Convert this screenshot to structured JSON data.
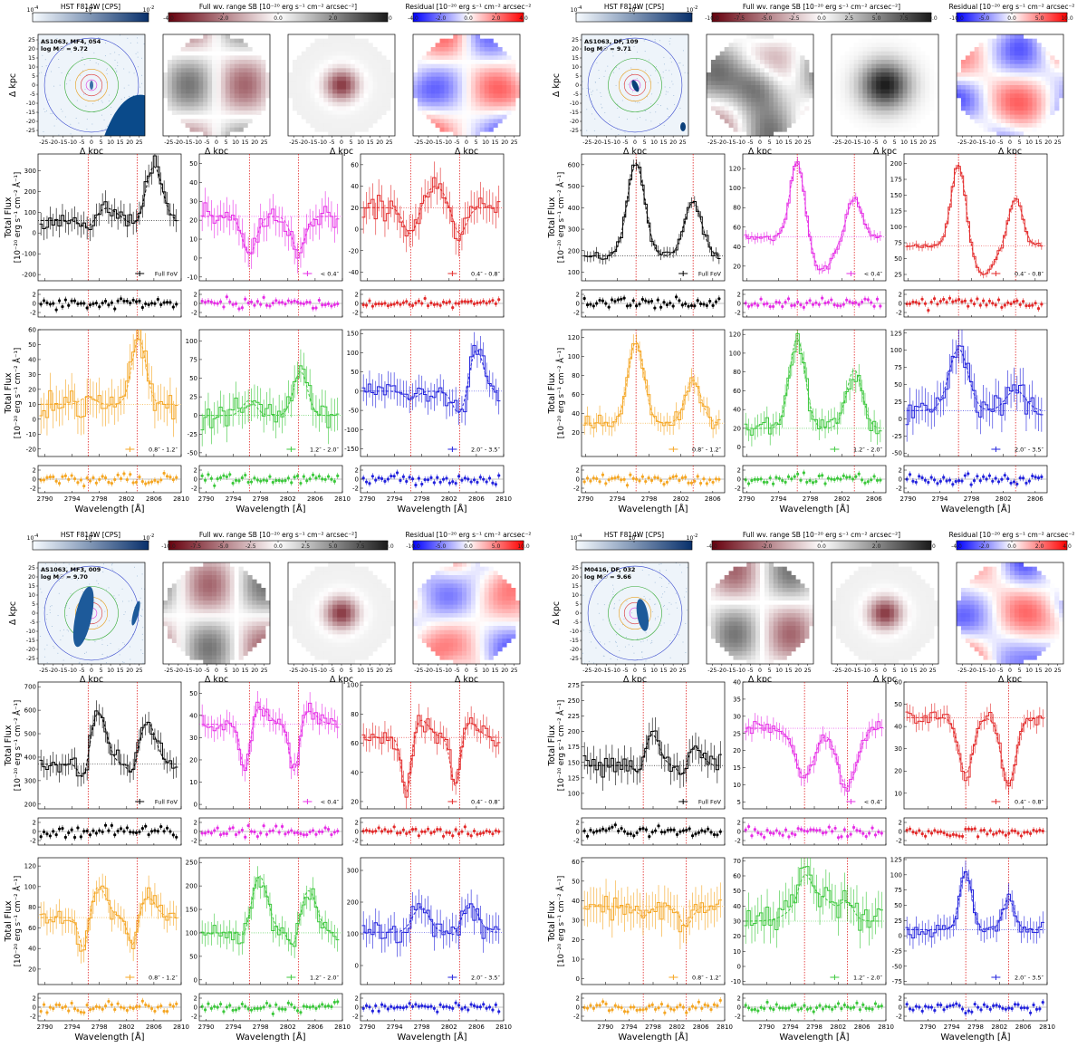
{
  "chart_data": {
    "type": "figure-grid",
    "common": {
      "hst_cbar": {
        "label": "HST F814W [CPS]",
        "tick_labels": [
          "10",
          "10",
          "10"
        ],
        "tick_exps": [
          "-4",
          "-3",
          "-2"
        ]
      },
      "sb_cbar_label": "Full wv. range SB [10⁻²⁰ erg s⁻¹ cm⁻² arcsec⁻²]",
      "res_cbar_label": "Residual [10⁻²⁰ erg s⁻¹ cm⁻² arcsec⁻²",
      "map_xlabel": "Δ kpc",
      "map_ylabel": "Δ kpc",
      "map_ticks": [
        -25,
        -20,
        -15,
        -10,
        -5,
        0,
        5,
        10,
        15,
        20,
        25
      ],
      "spec_xlabel": "Wavelength [Å]",
      "spec_ylabel_1": "Total Flux",
      "spec_ylabel_2": "[10⁻²⁰ erg s⁻¹ cm⁻² Å⁻¹]",
      "resid_yticks": [
        -2,
        0,
        2
      ],
      "aperture_labels": [
        "Full FoV",
        "< 0.4″",
        "0.4″ - 0.8″",
        "0.8″ - 1.2″",
        "1.2″ - 2.0″",
        "2.0″ - 3.5″"
      ],
      "aperture_colors": [
        "#000000",
        "#e62ee6",
        "#e32a2a",
        "#f5a623",
        "#3cc83c",
        "#2222dd"
      ],
      "line_markers": [
        2796.35,
        2803.53
      ]
    },
    "galaxies": [
      {
        "id": "AS1063, MF4, 054",
        "logm": "log M☉ = 9.72",
        "sb_ticks": [
          "-4.0",
          "-2.0",
          "0.0",
          "2.0",
          "4.0"
        ],
        "sb_range": [
          -4,
          4
        ],
        "res_ticks": [
          "-4.0",
          "-2.0",
          "0.0",
          "2.0",
          "4.0"
        ],
        "res_range": [
          -4,
          4
        ],
        "xticks": [
          2790,
          2794,
          2798,
          2802,
          2806,
          2810
        ],
        "xlim": [
          2789,
          2810
        ],
        "panels": [
          {
            "yticks": [
              -200,
              -100,
              0,
              100,
              200,
              300
            ],
            "ylim": [
              -230,
              380
            ],
            "profile": "abs",
            "cont": 60,
            "amp1": -40,
            "amp2": -30,
            "noise": 55,
            "base": 40,
            "extra": [
              {
                "c": 2806,
                "a": 260,
                "w": 1.2
              },
              {
                "c": 2799,
                "a": 60,
                "w": 1.5
              }
            ]
          },
          {
            "yticks": [
              -10,
              0,
              10,
              20,
              30,
              40,
              50
            ],
            "ylim": [
              -12,
              55
            ],
            "profile": "abs",
            "cont": 22,
            "amp1": -20,
            "amp2": -18,
            "noise": 8,
            "dash": true
          },
          {
            "yticks": [
              -40,
              -20,
              0,
              20,
              40,
              60
            ],
            "ylim": [
              -48,
              70
            ],
            "profile": "abs",
            "cont": 20,
            "amp1": -25,
            "amp2": -25,
            "noise": 15,
            "dash": true,
            "extra": [
              {
                "c": 2800,
                "a": 20,
                "w": 1.5
              }
            ]
          },
          {
            "yticks": [
              -20,
              -10,
              0,
              10,
              20,
              30,
              40,
              50,
              60
            ],
            "ylim": [
              -25,
              60
            ],
            "profile": "abs",
            "cont": 10,
            "amp1": 5,
            "amp2": 20,
            "noise": 12,
            "dash": true,
            "extra": [
              {
                "c": 2804,
                "a": 25,
                "w": 1
              }
            ]
          },
          {
            "yticks": [
              -50,
              -25,
              0,
              25,
              50,
              75,
              100
            ],
            "ylim": [
              -55,
              115
            ],
            "profile": "abs",
            "cont": 0,
            "amp1": 20,
            "amp2": 20,
            "noise": 22,
            "dash": true,
            "extra": [
              {
                "c": 2804,
                "a": 40,
                "w": 1
              }
            ]
          },
          {
            "yticks": [
              -150,
              -100,
              -50,
              0,
              50,
              100,
              150
            ],
            "ylim": [
              -170,
              160
            ],
            "profile": "abs",
            "cont": 0,
            "amp1": -20,
            "amp2": -60,
            "noise": 35,
            "dash": true,
            "extra": [
              {
                "c": 2806,
                "a": 110,
                "w": 1
              }
            ]
          }
        ]
      },
      {
        "id": "AS1063, DF, 109",
        "logm": "log M☉ = 9.71",
        "sb_ticks": [
          "-10.0",
          "-7.5",
          "-5.0",
          "-2.5",
          "0.0",
          "2.5",
          "5.0",
          "7.5",
          "10.0"
        ],
        "sb_range": [
          -10,
          10
        ],
        "res_ticks": [
          "-10.0",
          "-5.0",
          "0.0",
          "5.0",
          "10.0"
        ],
        "res_range": [
          -10,
          10
        ],
        "xticks": [
          2790,
          2794,
          2798,
          2802,
          2806
        ],
        "xlim": [
          2789.5,
          2807.5
        ],
        "panels": [
          {
            "yticks": [
              100,
              200,
              300,
              400,
              500,
              600
            ],
            "ylim": [
              60,
              650
            ],
            "profile": "emi",
            "cont": 175,
            "amp1": 430,
            "amp2": 250,
            "noise": 25,
            "w": 1.1,
            "dash": true
          },
          {
            "yticks": [
              20,
              40,
              60,
              80,
              100,
              120
            ],
            "ylim": [
              5,
              135
            ],
            "profile": "emi",
            "cont": 50,
            "amp1": 78,
            "amp2": 40,
            "noise": 5,
            "w": 0.9,
            "dash": true,
            "dip": [
              {
                "c": 2799.5,
                "a": -35,
                "w": 1.3
              }
            ]
          },
          {
            "yticks": [
              25,
              50,
              75,
              100,
              125,
              150,
              175,
              200
            ],
            "ylim": [
              15,
              215
            ],
            "profile": "emi",
            "cont": 70,
            "amp1": 130,
            "amp2": 75,
            "noise": 6,
            "w": 0.9,
            "dash": true,
            "dip": [
              {
                "c": 2799.5,
                "a": -45,
                "w": 1.3
              }
            ]
          },
          {
            "yticks": [
              20,
              40,
              60,
              80,
              100,
              120
            ],
            "ylim": [
              -5,
              128
            ],
            "profile": "emi",
            "cont": 30,
            "amp1": 85,
            "amp2": 45,
            "noise": 10,
            "w": 1.0,
            "dash": true
          },
          {
            "yticks": [
              0,
              20,
              40,
              60,
              80,
              100,
              120
            ],
            "ylim": [
              -10,
              125
            ],
            "profile": "emi",
            "cont": 20,
            "amp1": 95,
            "amp2": 62,
            "noise": 12,
            "w": 1.0,
            "dash": true
          },
          {
            "yticks": [
              -50,
              -25,
              0,
              25,
              50,
              75,
              100,
              125
            ],
            "ylim": [
              -55,
              130
            ],
            "profile": "emi",
            "cont": 12,
            "amp1": 90,
            "amp2": 30,
            "noise": 25,
            "w": 1.2,
            "dash": true
          }
        ]
      },
      {
        "id": "AS1063, MF3, 009",
        "logm": "log M☉ = 9.70",
        "sb_ticks": [
          "-10.0",
          "-7.5",
          "-5.0",
          "-2.5",
          "0.0",
          "2.5",
          "5.0",
          "7.5",
          "10.0"
        ],
        "sb_range": [
          -10,
          10
        ],
        "res_ticks": [
          "-10.0",
          "-5.0",
          "0.0",
          "5.0",
          "10.0"
        ],
        "res_range": [
          -10,
          10
        ],
        "xticks": [
          2790,
          2794,
          2798,
          2802,
          2806,
          2810
        ],
        "xlim": [
          2789,
          2810
        ],
        "panels": [
          {
            "yticks": [
              200,
              300,
              400,
              500,
              600,
              700
            ],
            "ylim": [
              180,
              720
            ],
            "profile": "pcyg",
            "cont": 370,
            "amp1": -90,
            "amp2": -60,
            "em1": 220,
            "em2": 180,
            "noise": 45,
            "dash": true
          },
          {
            "yticks": [
              0,
              10,
              20,
              30,
              40,
              50
            ],
            "ylim": [
              -2,
              55
            ],
            "profile": "pcyg",
            "cont": 36,
            "amp1": -22,
            "amp2": -22,
            "em1": 8,
            "em2": 6,
            "noise": 5,
            "dash": true
          },
          {
            "yticks": [
              20,
              40,
              60,
              80,
              100
            ],
            "ylim": [
              15,
              102
            ],
            "profile": "pcyg",
            "cont": 64,
            "amp1": -40,
            "amp2": -35,
            "em1": 12,
            "em2": 10,
            "noise": 8,
            "dash": true
          },
          {
            "yticks": [
              20,
              40,
              60,
              80,
              100,
              120
            ],
            "ylim": [
              5,
              128
            ],
            "profile": "pcyg",
            "cont": 70,
            "amp1": -35,
            "amp2": -30,
            "em1": 30,
            "em2": 20,
            "noise": 12,
            "dash": true
          },
          {
            "yticks": [
              0,
              50,
              100,
              150,
              200,
              250
            ],
            "ylim": [
              -10,
              260
            ],
            "profile": "pcyg",
            "cont": 100,
            "amp1": -20,
            "amp2": -40,
            "em1": 120,
            "em2": 90,
            "noise": 25,
            "dash": true
          },
          {
            "yticks": [
              0,
              100,
              200,
              300
            ],
            "ylim": [
              -60,
              340
            ],
            "profile": "pcyg",
            "cont": 105,
            "amp1": 0,
            "amp2": -20,
            "em1": 80,
            "em2": 90,
            "noise": 45,
            "dash": true
          }
        ]
      },
      {
        "id": "M0416, DF, 032",
        "logm": "log M☉ = 9.66",
        "sb_ticks": [
          "-4.0",
          "-2.0",
          "0.0",
          "2.0",
          "4.0"
        ],
        "sb_range": [
          -4,
          4
        ],
        "res_ticks": [
          "-4.0",
          "-2.0",
          "0.0",
          "2.0",
          "4.0"
        ],
        "res_range": [
          -4,
          4
        ],
        "xticks": [
          2790,
          2794,
          2798,
          2802,
          2806,
          2810
        ],
        "xlim": [
          2786,
          2810
        ],
        "panels": [
          {
            "yticks": [
              100,
              125,
              150,
              175,
              200,
              225,
              250,
              275
            ],
            "ylim": [
              75,
              280
            ],
            "profile": "pcyg",
            "cont": 145,
            "amp1": -20,
            "amp2": -20,
            "em1": 50,
            "em2": 30,
            "noise": 22,
            "dash": true
          },
          {
            "yticks": [
              5,
              10,
              15,
              20,
              25,
              30,
              35,
              40
            ],
            "ylim": [
              3,
              40
            ],
            "profile": "abs",
            "cont": 26.5,
            "amp1": -14,
            "amp2": -17,
            "noise": 2.5,
            "dash": true,
            "w": 1.6
          },
          {
            "yticks": [
              10,
              20,
              30,
              40,
              50,
              60
            ],
            "ylim": [
              3,
              60
            ],
            "profile": "abs",
            "cont": 44,
            "amp1": -25,
            "amp2": -30,
            "noise": 4,
            "dash": true,
            "w": 1.2
          },
          {
            "yticks": [
              0,
              10,
              20,
              30,
              40,
              50,
              60
            ],
            "ylim": [
              -3,
              62
            ],
            "profile": "abs",
            "cont": 37,
            "amp1": -5,
            "amp2": -10,
            "noise": 9,
            "dash": true
          },
          {
            "yticks": [
              -10,
              0,
              10,
              20,
              30,
              40,
              50,
              60,
              70
            ],
            "ylim": [
              -12,
              72
            ],
            "profile": "abs",
            "cont": 30,
            "amp1": 15,
            "amp2": 10,
            "noise": 12,
            "dash": true,
            "extra": [
              {
                "c": 2798,
                "a": 18,
                "w": 3
              }
            ]
          },
          {
            "yticks": [
              -75,
              -50,
              -25,
              0,
              25,
              50,
              75,
              100,
              125
            ],
            "ylim": [
              -80,
              128
            ],
            "profile": "emi",
            "cont": 10,
            "amp1": 95,
            "amp2": 50,
            "noise": 18,
            "w": 1.0,
            "dash": true
          }
        ]
      }
    ]
  }
}
